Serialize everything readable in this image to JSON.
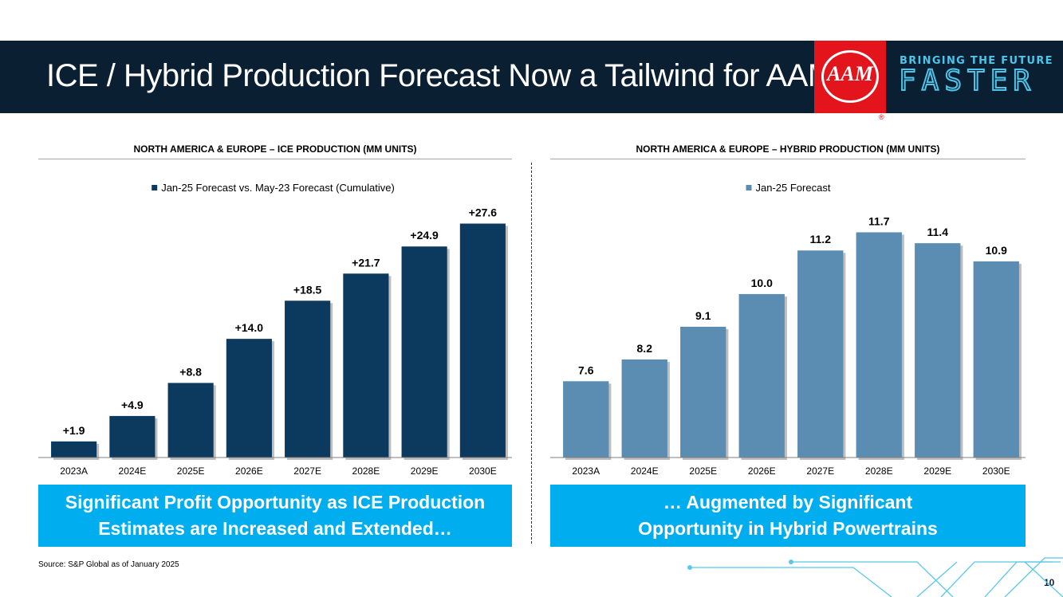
{
  "header": {
    "title": "ICE / Hybrid Production Forecast Now a Tailwind for AAM",
    "logo_text": "AAM",
    "registered_mark": "®",
    "tagline_top": "BRINGING THE FUTURE",
    "tagline_bottom": "FASTER"
  },
  "colors": {
    "header_bg": "#0b1f33",
    "logo_red": "#e3141b",
    "accent_cyan": "#00aeef",
    "ice_bar": "#0b3a5e",
    "hybrid_bar": "#5b8db2"
  },
  "chart_data": [
    {
      "type": "bar",
      "title": "NORTH AMERICA & EUROPE – ICE PRODUCTION (MM UNITS)",
      "categories": [
        "2023A",
        "2024E",
        "2025E",
        "2026E",
        "2027E",
        "2028E",
        "2029E",
        "2030E"
      ],
      "series": [
        {
          "name": "Jan-25 Forecast vs. May-23 Forecast (Cumulative)",
          "values": [
            1.9,
            4.9,
            8.8,
            14.0,
            18.5,
            21.7,
            24.9,
            27.6
          ]
        }
      ],
      "data_labels": [
        "+1.9",
        "+4.9",
        "+8.8",
        "+14.0",
        "+18.5",
        "+21.7",
        "+24.9",
        "+27.6"
      ],
      "xlabel": "",
      "ylabel": "",
      "ylim": [
        0,
        30
      ],
      "legend": "top-center",
      "grid": false
    },
    {
      "type": "bar",
      "title": "NORTH AMERICA & EUROPE – HYBRID PRODUCTION (MM UNITS)",
      "categories": [
        "2023A",
        "2024E",
        "2025E",
        "2026E",
        "2027E",
        "2028E",
        "2029E",
        "2030E"
      ],
      "series": [
        {
          "name": "Jan-25 Forecast",
          "values": [
            7.6,
            8.2,
            9.1,
            10.0,
            11.2,
            11.7,
            11.4,
            10.9
          ]
        }
      ],
      "data_labels": [
        "7.6",
        "8.2",
        "9.1",
        "10.0",
        "11.2",
        "11.7",
        "11.4",
        "10.9"
      ],
      "xlabel": "",
      "ylabel": "",
      "ylim": [
        5.5,
        12.5
      ],
      "legend": "top-center",
      "grid": false
    }
  ],
  "callouts": {
    "left_line1": "Significant Profit Opportunity as ICE Production",
    "left_line2": "Estimates are Increased and Extended…",
    "right_line1": "… Augmented by Significant",
    "right_line2": "Opportunity in Hybrid Powertrains"
  },
  "footer": {
    "source": "Source: S&P Global as of January 2025",
    "page_number": "10"
  }
}
